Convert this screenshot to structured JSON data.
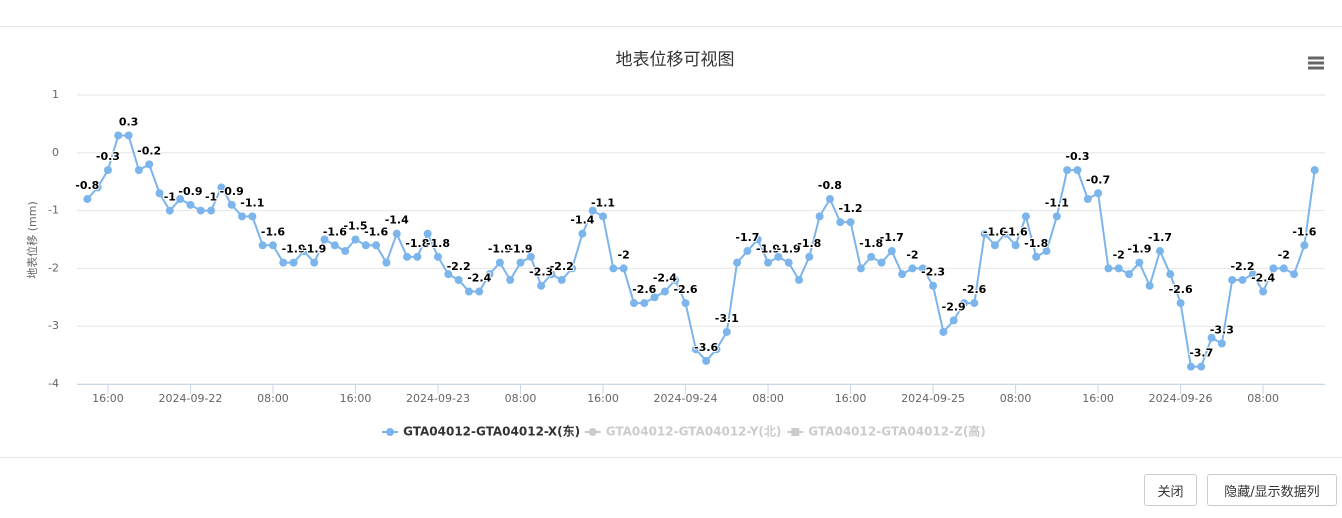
{
  "chart_data": {
    "type": "line",
    "title": "地表位移可视图",
    "y_axis_label": "地表位移 (mm)",
    "x": [
      "2024-09-21 14:00",
      "2024-09-21 15:00",
      "2024-09-21 16:00",
      "2024-09-21 17:00",
      "2024-09-21 18:00",
      "2024-09-21 19:00",
      "2024-09-21 20:00",
      "2024-09-21 21:00",
      "2024-09-21 22:00",
      "2024-09-21 23:00",
      "2024-09-22 00:00",
      "2024-09-22 01:00",
      "2024-09-22 02:00",
      "2024-09-22 03:00",
      "2024-09-22 04:00",
      "2024-09-22 05:00",
      "2024-09-22 06:00",
      "2024-09-22 07:00",
      "2024-09-22 08:00",
      "2024-09-22 09:00",
      "2024-09-22 10:00",
      "2024-09-22 11:00",
      "2024-09-22 12:00",
      "2024-09-22 13:00",
      "2024-09-22 14:00",
      "2024-09-22 15:00",
      "2024-09-22 16:00",
      "2024-09-22 17:00",
      "2024-09-22 18:00",
      "2024-09-22 19:00",
      "2024-09-22 20:00",
      "2024-09-22 21:00",
      "2024-09-22 22:00",
      "2024-09-22 23:00",
      "2024-09-23 00:00",
      "2024-09-23 01:00",
      "2024-09-23 02:00",
      "2024-09-23 03:00",
      "2024-09-23 04:00",
      "2024-09-23 05:00",
      "2024-09-23 06:00",
      "2024-09-23 07:00",
      "2024-09-23 08:00",
      "2024-09-23 09:00",
      "2024-09-23 10:00",
      "2024-09-23 11:00",
      "2024-09-23 12:00",
      "2024-09-23 13:00",
      "2024-09-23 14:00",
      "2024-09-23 15:00",
      "2024-09-23 16:00",
      "2024-09-23 17:00",
      "2024-09-23 18:00",
      "2024-09-23 19:00",
      "2024-09-23 20:00",
      "2024-09-23 21:00",
      "2024-09-23 22:00",
      "2024-09-23 23:00",
      "2024-09-24 00:00",
      "2024-09-24 01:00",
      "2024-09-24 02:00",
      "2024-09-24 03:00",
      "2024-09-24 04:00",
      "2024-09-24 05:00",
      "2024-09-24 06:00",
      "2024-09-24 07:00",
      "2024-09-24 08:00",
      "2024-09-24 09:00",
      "2024-09-24 10:00",
      "2024-09-24 11:00",
      "2024-09-24 12:00",
      "2024-09-24 13:00",
      "2024-09-24 14:00",
      "2024-09-24 15:00",
      "2024-09-24 16:00",
      "2024-09-24 17:00",
      "2024-09-24 18:00",
      "2024-09-24 19:00",
      "2024-09-24 20:00",
      "2024-09-24 21:00",
      "2024-09-24 22:00",
      "2024-09-24 23:00",
      "2024-09-25 00:00",
      "2024-09-25 01:00",
      "2024-09-25 02:00",
      "2024-09-25 03:00",
      "2024-09-25 04:00",
      "2024-09-25 05:00",
      "2024-09-25 06:00",
      "2024-09-25 07:00",
      "2024-09-25 08:00",
      "2024-09-25 09:00",
      "2024-09-25 10:00",
      "2024-09-25 11:00",
      "2024-09-25 12:00",
      "2024-09-25 13:00",
      "2024-09-25 14:00",
      "2024-09-25 15:00",
      "2024-09-25 16:00",
      "2024-09-25 17:00",
      "2024-09-25 18:00",
      "2024-09-25 19:00",
      "2024-09-25 20:00",
      "2024-09-25 21:00",
      "2024-09-25 22:00",
      "2024-09-25 23:00",
      "2024-09-26 00:00",
      "2024-09-26 01:00",
      "2024-09-26 02:00",
      "2024-09-26 03:00",
      "2024-09-26 04:00",
      "2024-09-26 05:00",
      "2024-09-26 06:00",
      "2024-09-26 07:00",
      "2024-09-26 08:00",
      "2024-09-26 09:00",
      "2024-09-26 10:00",
      "2024-09-26 11:00",
      "2024-09-26 12:00",
      "2024-09-26 13:00"
    ],
    "series": [
      {
        "name": "GTA04012-GTA04012-X(东)",
        "color": "#7cb5ec",
        "values": [
          -0.8,
          -0.6,
          -0.3,
          0.3,
          0.3,
          -0.3,
          -0.2,
          -0.7,
          -1.0,
          -0.8,
          -0.9,
          -1.0,
          -1.0,
          -0.6,
          -0.9,
          -1.1,
          -1.1,
          -1.6,
          -1.6,
          -1.9,
          -1.9,
          -1.7,
          -1.9,
          -1.5,
          -1.6,
          -1.7,
          -1.5,
          -1.6,
          -1.6,
          -1.9,
          -1.4,
          -1.8,
          -1.8,
          -1.4,
          -1.8,
          -2.1,
          -2.2,
          -2.4,
          -2.4,
          -2.1,
          -1.9,
          -2.2,
          -1.9,
          -1.8,
          -2.3,
          -2.1,
          -2.2,
          -2.0,
          -1.4,
          -1.0,
          -1.1,
          -2.0,
          -2.0,
          -2.6,
          -2.6,
          -2.5,
          -2.4,
          -2.2,
          -2.6,
          -3.4,
          -3.6,
          -3.4,
          -3.1,
          -1.9,
          -1.7,
          -1.5,
          -1.9,
          -1.8,
          -1.9,
          -2.2,
          -1.8,
          -1.1,
          -0.8,
          -1.2,
          -1.2,
          -2.0,
          -1.8,
          -1.9,
          -1.7,
          -2.1,
          -2.0,
          -2.0,
          -2.3,
          -3.1,
          -2.9,
          -2.6,
          -2.6,
          -1.4,
          -1.6,
          -1.4,
          -1.6,
          -1.1,
          -1.8,
          -1.7,
          -1.1,
          -0.3,
          -0.3,
          -0.8,
          -0.7,
          -2.0,
          -2.0,
          -2.1,
          -1.9,
          -2.3,
          -1.7,
          -2.1,
          -2.6,
          -3.7,
          -3.7,
          -3.2,
          -3.3,
          -2.2,
          -2.2,
          -2.1,
          -2.4,
          -2.0,
          -2.0,
          -2.1,
          -1.6,
          -0.3
        ]
      },
      {
        "name": "GTA04012-GTA04012-Y(北)",
        "color": "#cccccc",
        "visible": false
      },
      {
        "name": "GTA04012-GTA04012-Z(高)",
        "color": "#cccccc",
        "visible": false
      }
    ],
    "xlim": [
      "2024-09-21 13:00",
      "2024-09-26 14:00"
    ],
    "xticks": [
      {
        "value": "2024-09-21 16:00",
        "label": "16:00"
      },
      {
        "value": "2024-09-22 00:00",
        "label": "2024-09-22"
      },
      {
        "value": "2024-09-22 08:00",
        "label": "08:00"
      },
      {
        "value": "2024-09-22 16:00",
        "label": "16:00"
      },
      {
        "value": "2024-09-23 00:00",
        "label": "2024-09-23"
      },
      {
        "value": "2024-09-23 08:00",
        "label": "08:00"
      },
      {
        "value": "2024-09-23 16:00",
        "label": "16:00"
      },
      {
        "value": "2024-09-24 00:00",
        "label": "2024-09-24"
      },
      {
        "value": "2024-09-24 08:00",
        "label": "08:00"
      },
      {
        "value": "2024-09-24 16:00",
        "label": "16:00"
      },
      {
        "value": "2024-09-25 00:00",
        "label": "2024-09-25"
      },
      {
        "value": "2024-09-25 08:00",
        "label": "08:00"
      },
      {
        "value": "2024-09-25 16:00",
        "label": "16:00"
      },
      {
        "value": "2024-09-26 00:00",
        "label": "2024-09-26"
      },
      {
        "value": "2024-09-26 08:00",
        "label": "08:00"
      }
    ],
    "ylim": [
      -4,
      1
    ],
    "yticks": [
      -4,
      -3,
      -2,
      -1,
      0,
      1
    ],
    "grid": true,
    "data_labels": true
  },
  "buttons": [
    "关闭",
    "隐藏/显示数据列"
  ]
}
